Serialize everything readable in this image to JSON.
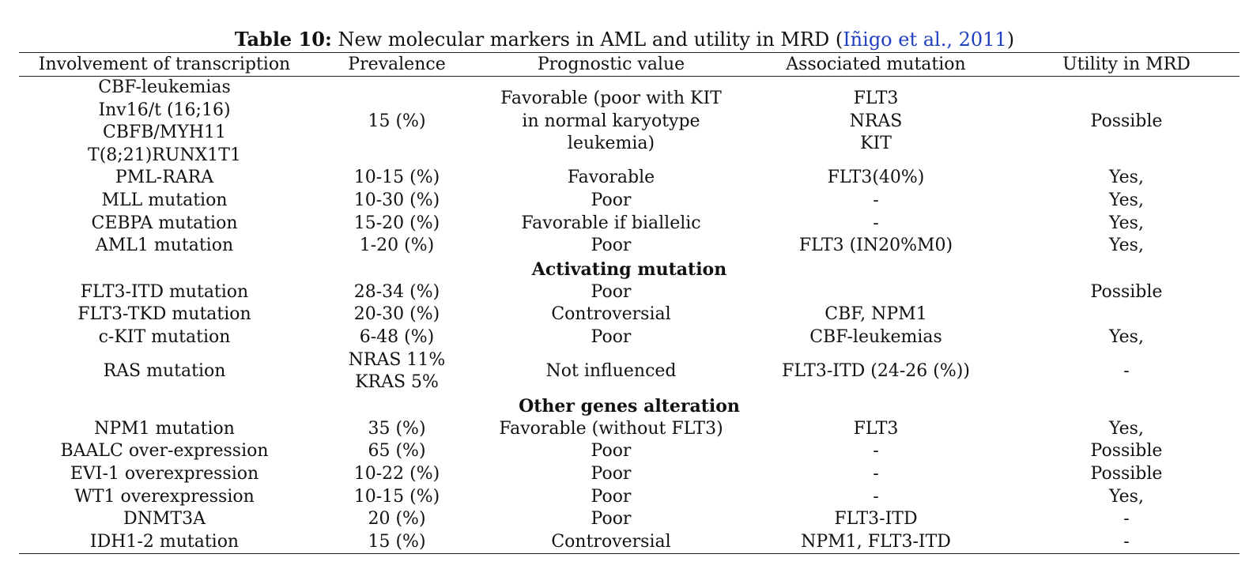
{
  "caption": {
    "label": "Table 10:",
    "text": " New molecular markers in AML and utility in MRD (",
    "citation": "Iñigo et al., 2011",
    "close": ")"
  },
  "columns": [
    "Involvement of transcription",
    "Prevalence",
    "Prognostic value",
    "Associated mutation",
    "Utility in MRD"
  ],
  "rows": [
    {
      "gene": [
        "CBF-leukemias",
        "Inv16/t (16;16)",
        "CBFB/MYH11",
        "T(8;21)RUNX1T1"
      ],
      "prevalence": [
        "15 (%)"
      ],
      "prognostic": [
        "Favorable (poor with KIT",
        "in normal karyotype",
        "leukemia)"
      ],
      "mutation": [
        "FLT3",
        "NRAS",
        "KIT"
      ],
      "mrd": [
        "Possible"
      ]
    },
    {
      "gene": [
        "PML-RARA"
      ],
      "prevalence": [
        "10-15 (%)"
      ],
      "prognostic": [
        "Favorable"
      ],
      "mutation": [
        "FLT3(40%)"
      ],
      "mrd": [
        "Yes,"
      ]
    },
    {
      "gene": [
        "MLL mutation"
      ],
      "prevalence": [
        "10-30 (%)"
      ],
      "prognostic": [
        "Poor"
      ],
      "mutation": [
        "-"
      ],
      "mrd": [
        "Yes,"
      ]
    },
    {
      "gene": [
        "CEBPA mutation"
      ],
      "prevalence": [
        "15-20 (%)"
      ],
      "prognostic": [
        "Favorable if biallelic"
      ],
      "mutation": [
        "-"
      ],
      "mrd": [
        "Yes,"
      ]
    },
    {
      "gene": [
        "AML1 mutation"
      ],
      "prevalence": [
        "1-20 (%)"
      ],
      "prognostic": [
        "Poor"
      ],
      "mutation": [
        "FLT3 (IN20%M0)"
      ],
      "mrd": [
        "Yes,"
      ]
    },
    {
      "section": "Activating mutation"
    },
    {
      "gene": [
        "FLT3-ITD mutation"
      ],
      "prevalence": [
        "28-34 (%)"
      ],
      "prognostic": [
        "Poor"
      ],
      "mutation": [
        ""
      ],
      "mrd": [
        "Possible"
      ]
    },
    {
      "gene": [
        "FLT3-TKD mutation"
      ],
      "prevalence": [
        "20-30 (%)"
      ],
      "prognostic": [
        "Controversial"
      ],
      "mutation": [
        "CBF, NPM1"
      ],
      "mrd": [
        ""
      ]
    },
    {
      "gene": [
        "c-KIT mutation"
      ],
      "prevalence": [
        "6-48 (%)"
      ],
      "prognostic": [
        "Poor"
      ],
      "mutation": [
        "CBF-leukemias"
      ],
      "mrd": [
        "Yes,"
      ]
    },
    {
      "gene": [
        "RAS mutation"
      ],
      "prevalence": [
        "NRAS 11%",
        "KRAS 5%"
      ],
      "prognostic": [
        "Not influenced"
      ],
      "mutation": [
        "FLT3-ITD (24-26 (%))"
      ],
      "mrd": [
        "-"
      ]
    },
    {
      "section": "Other genes alteration"
    },
    {
      "gene": [
        "NPM1 mutation"
      ],
      "prevalence": [
        "35 (%)"
      ],
      "prognostic": [
        "Favorable (without FLT3)"
      ],
      "mutation": [
        "FLT3"
      ],
      "mrd": [
        "Yes,"
      ]
    },
    {
      "gene": [
        "BAALC over-expression"
      ],
      "prevalence": [
        "65 (%)"
      ],
      "prognostic": [
        "Poor"
      ],
      "mutation": [
        "-"
      ],
      "mrd": [
        "Possible"
      ]
    },
    {
      "gene": [
        "EVI-1 overexpression"
      ],
      "prevalence": [
        "10-22 (%)"
      ],
      "prognostic": [
        "Poor"
      ],
      "mutation": [
        "-"
      ],
      "mrd": [
        "Possible"
      ]
    },
    {
      "gene": [
        "WT1 overexpression"
      ],
      "prevalence": [
        "10-15 (%)"
      ],
      "prognostic": [
        "Poor"
      ],
      "mutation": [
        "-"
      ],
      "mrd": [
        "Yes,"
      ]
    },
    {
      "gene": [
        "DNMT3A"
      ],
      "prevalence": [
        "20 (%)"
      ],
      "prognostic": [
        "Poor"
      ],
      "mutation": [
        "FLT3-ITD"
      ],
      "mrd": [
        "-"
      ]
    },
    {
      "gene": [
        "IDH1-2 mutation"
      ],
      "prevalence": [
        "15 (%)"
      ],
      "prognostic": [
        "Controversial"
      ],
      "mutation": [
        "NPM1, FLT3-ITD"
      ],
      "mrd": [
        "-"
      ]
    }
  ]
}
